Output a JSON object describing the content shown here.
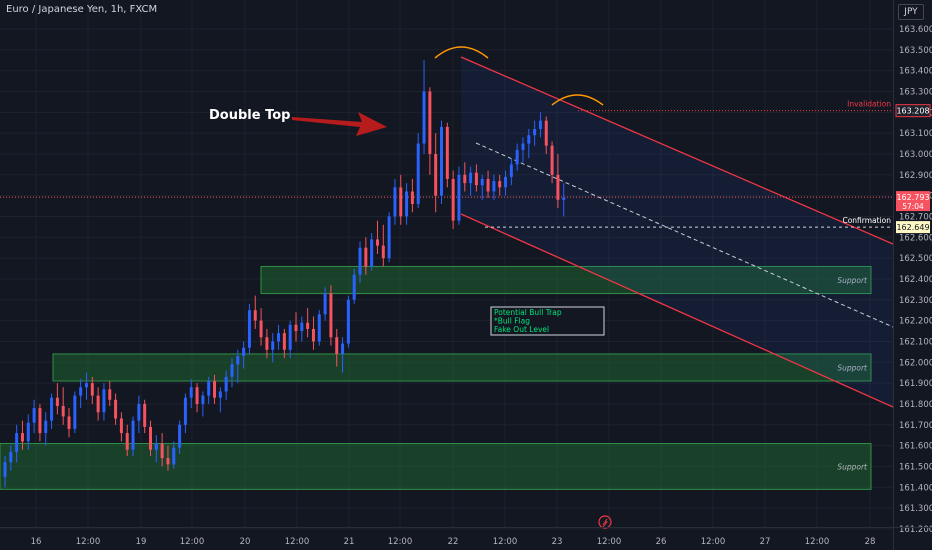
{
  "header": {
    "symbol": "Euro / Japanese Yen, 1h, FXCM",
    "currency": "JPY"
  },
  "colors": {
    "background": "#131722",
    "up": "#2962ff",
    "down": "#f7525f",
    "zone_fill": "#1e5d2f",
    "zone_border": "#2f8f46",
    "channel": "#f23645",
    "arch": "#ff9800"
  },
  "chart_data": {
    "type": "candlestick",
    "title": "Euro / Japanese Yen, 1h, FXCM",
    "y_axis": {
      "ticks": [
        "163.600",
        "163.500",
        "163.400",
        "163.300",
        "163.200",
        "163.100",
        "163.000",
        "162.900",
        "162.800",
        "162.700",
        "162.600",
        "162.500",
        "162.400",
        "162.300",
        "162.200",
        "162.100",
        "162.000",
        "161.900",
        "161.800",
        "161.700",
        "161.600",
        "161.500",
        "161.400",
        "161.300",
        "161.200"
      ],
      "ylim": [
        161.17,
        163.68
      ]
    },
    "x_axis": {
      "ticks": [
        "16",
        "12:00",
        "19",
        "12:00",
        "20",
        "12:00",
        "21",
        "12:00",
        "22",
        "12:00",
        "23",
        "12:00",
        "26",
        "12:00",
        "27",
        "12:00",
        "28"
      ]
    },
    "price_labels": [
      {
        "label": "Invalidation",
        "value": "163.208"
      },
      {
        "label": "",
        "value": "162.793",
        "sub": "57:04"
      },
      {
        "label": "Confirmation",
        "value": "162.649"
      }
    ],
    "annotations": {
      "double_top": "Double Top",
      "note_lines": [
        "Potential Bull Trap",
        "*Bull Flag",
        "Fake Out Level"
      ],
      "zones": [
        "Support",
        "Support",
        "Support"
      ]
    },
    "candles": [
      [
        161.45,
        161.55,
        161.4,
        161.52
      ],
      [
        161.52,
        161.6,
        161.48,
        161.57
      ],
      [
        161.57,
        161.7,
        161.52,
        161.66
      ],
      [
        161.66,
        161.72,
        161.58,
        161.62
      ],
      [
        161.62,
        161.75,
        161.58,
        161.71
      ],
      [
        161.71,
        161.82,
        161.66,
        161.78
      ],
      [
        161.78,
        161.8,
        161.62,
        161.66
      ],
      [
        161.66,
        161.76,
        161.6,
        161.72
      ],
      [
        161.72,
        161.85,
        161.68,
        161.83
      ],
      [
        161.83,
        161.9,
        161.75,
        161.79
      ],
      [
        161.79,
        161.88,
        161.7,
        161.74
      ],
      [
        161.74,
        161.78,
        161.64,
        161.68
      ],
      [
        161.68,
        161.86,
        161.66,
        161.84
      ],
      [
        161.84,
        161.92,
        161.78,
        161.88
      ],
      [
        161.88,
        161.95,
        161.82,
        161.9
      ],
      [
        161.9,
        161.93,
        161.8,
        161.84
      ],
      [
        161.84,
        161.88,
        161.72,
        161.76
      ],
      [
        161.76,
        161.9,
        161.72,
        161.87
      ],
      [
        161.87,
        161.91,
        161.79,
        161.82
      ],
      [
        161.82,
        161.85,
        161.7,
        161.73
      ],
      [
        161.73,
        161.76,
        161.62,
        161.66
      ],
      [
        161.66,
        161.7,
        161.55,
        161.58
      ],
      [
        161.58,
        161.74,
        161.55,
        161.72
      ],
      [
        161.72,
        161.84,
        161.66,
        161.8
      ],
      [
        161.8,
        161.82,
        161.66,
        161.69
      ],
      [
        161.69,
        161.72,
        161.55,
        161.58
      ],
      [
        161.58,
        161.65,
        161.52,
        161.61
      ],
      [
        161.61,
        161.66,
        161.5,
        161.54
      ],
      [
        161.54,
        161.6,
        161.48,
        161.51
      ],
      [
        161.51,
        161.62,
        161.49,
        161.59
      ],
      [
        161.59,
        161.72,
        161.56,
        161.7
      ],
      [
        161.7,
        161.85,
        161.66,
        161.83
      ],
      [
        161.83,
        161.92,
        161.78,
        161.88
      ],
      [
        161.88,
        161.9,
        161.76,
        161.8
      ],
      [
        161.8,
        161.86,
        161.74,
        161.84
      ],
      [
        161.84,
        161.93,
        161.8,
        161.91
      ],
      [
        161.91,
        161.94,
        161.8,
        161.83
      ],
      [
        161.83,
        161.88,
        161.76,
        161.86
      ],
      [
        161.86,
        161.96,
        161.82,
        161.93
      ],
      [
        161.93,
        162.02,
        161.88,
        161.99
      ],
      [
        161.99,
        162.06,
        161.9,
        162.03
      ],
      [
        162.03,
        162.1,
        161.97,
        162.07
      ],
      [
        162.07,
        162.28,
        162.04,
        162.25
      ],
      [
        162.25,
        162.32,
        162.16,
        162.2
      ],
      [
        162.2,
        162.26,
        162.08,
        162.12
      ],
      [
        162.12,
        162.16,
        162.02,
        162.06
      ],
      [
        162.06,
        162.14,
        162.0,
        162.1
      ],
      [
        162.1,
        162.18,
        162.06,
        162.14
      ],
      [
        162.14,
        162.16,
        162.02,
        162.06
      ],
      [
        162.06,
        162.2,
        162.02,
        162.18
      ],
      [
        162.18,
        162.24,
        162.1,
        162.15
      ],
      [
        162.15,
        162.22,
        162.1,
        162.19
      ],
      [
        162.19,
        162.26,
        162.12,
        162.16
      ],
      [
        162.16,
        162.22,
        162.06,
        162.1
      ],
      [
        162.1,
        162.25,
        162.08,
        162.23
      ],
      [
        162.23,
        162.36,
        162.2,
        162.33
      ],
      [
        162.33,
        162.37,
        162.08,
        162.12
      ],
      [
        162.12,
        162.16,
        161.98,
        162.04
      ],
      [
        162.04,
        162.12,
        161.95,
        162.09
      ],
      [
        162.09,
        162.32,
        162.07,
        162.3
      ],
      [
        162.3,
        162.45,
        162.28,
        162.42
      ],
      [
        162.42,
        162.58,
        162.38,
        162.55
      ],
      [
        162.55,
        162.6,
        162.42,
        162.46
      ],
      [
        162.46,
        162.62,
        162.44,
        162.59
      ],
      [
        162.59,
        162.68,
        162.52,
        162.56
      ],
      [
        162.56,
        162.66,
        162.46,
        162.5
      ],
      [
        162.5,
        162.72,
        162.48,
        162.7
      ],
      [
        162.7,
        162.88,
        162.66,
        162.84
      ],
      [
        162.84,
        162.9,
        162.66,
        162.7
      ],
      [
        162.7,
        162.86,
        162.66,
        162.82
      ],
      [
        162.82,
        162.88,
        162.72,
        162.76
      ],
      [
        162.76,
        163.1,
        162.74,
        163.05
      ],
      [
        163.05,
        163.45,
        163.0,
        163.3
      ],
      [
        163.3,
        163.32,
        162.9,
        163.0
      ],
      [
        163.0,
        163.1,
        162.72,
        162.8
      ],
      [
        162.8,
        163.16,
        162.76,
        163.13
      ],
      [
        163.13,
        163.15,
        162.84,
        162.88
      ],
      [
        162.88,
        162.92,
        162.64,
        162.68
      ],
      [
        162.68,
        162.94,
        162.66,
        162.9
      ],
      [
        162.9,
        162.96,
        162.82,
        162.86
      ],
      [
        162.86,
        162.94,
        162.8,
        162.91
      ],
      [
        162.91,
        162.95,
        162.82,
        162.85
      ],
      [
        162.85,
        162.9,
        162.78,
        162.88
      ],
      [
        162.88,
        162.92,
        162.79,
        162.82
      ],
      [
        162.82,
        162.9,
        162.78,
        162.87
      ],
      [
        162.87,
        162.9,
        162.8,
        162.84
      ],
      [
        162.84,
        162.92,
        162.8,
        162.89
      ],
      [
        162.89,
        162.98,
        162.85,
        162.95
      ],
      [
        162.95,
        163.05,
        162.92,
        163.02
      ],
      [
        163.02,
        163.08,
        162.96,
        163.05
      ],
      [
        163.05,
        163.12,
        162.98,
        163.09
      ],
      [
        163.09,
        163.16,
        163.04,
        163.12
      ],
      [
        163.12,
        163.2,
        163.08,
        163.16
      ],
      [
        163.16,
        163.18,
        163.0,
        163.04
      ],
      [
        163.04,
        163.06,
        162.86,
        162.9
      ],
      [
        162.9,
        163.0,
        162.74,
        162.78
      ],
      [
        162.78,
        162.86,
        162.7,
        162.79
      ]
    ]
  }
}
